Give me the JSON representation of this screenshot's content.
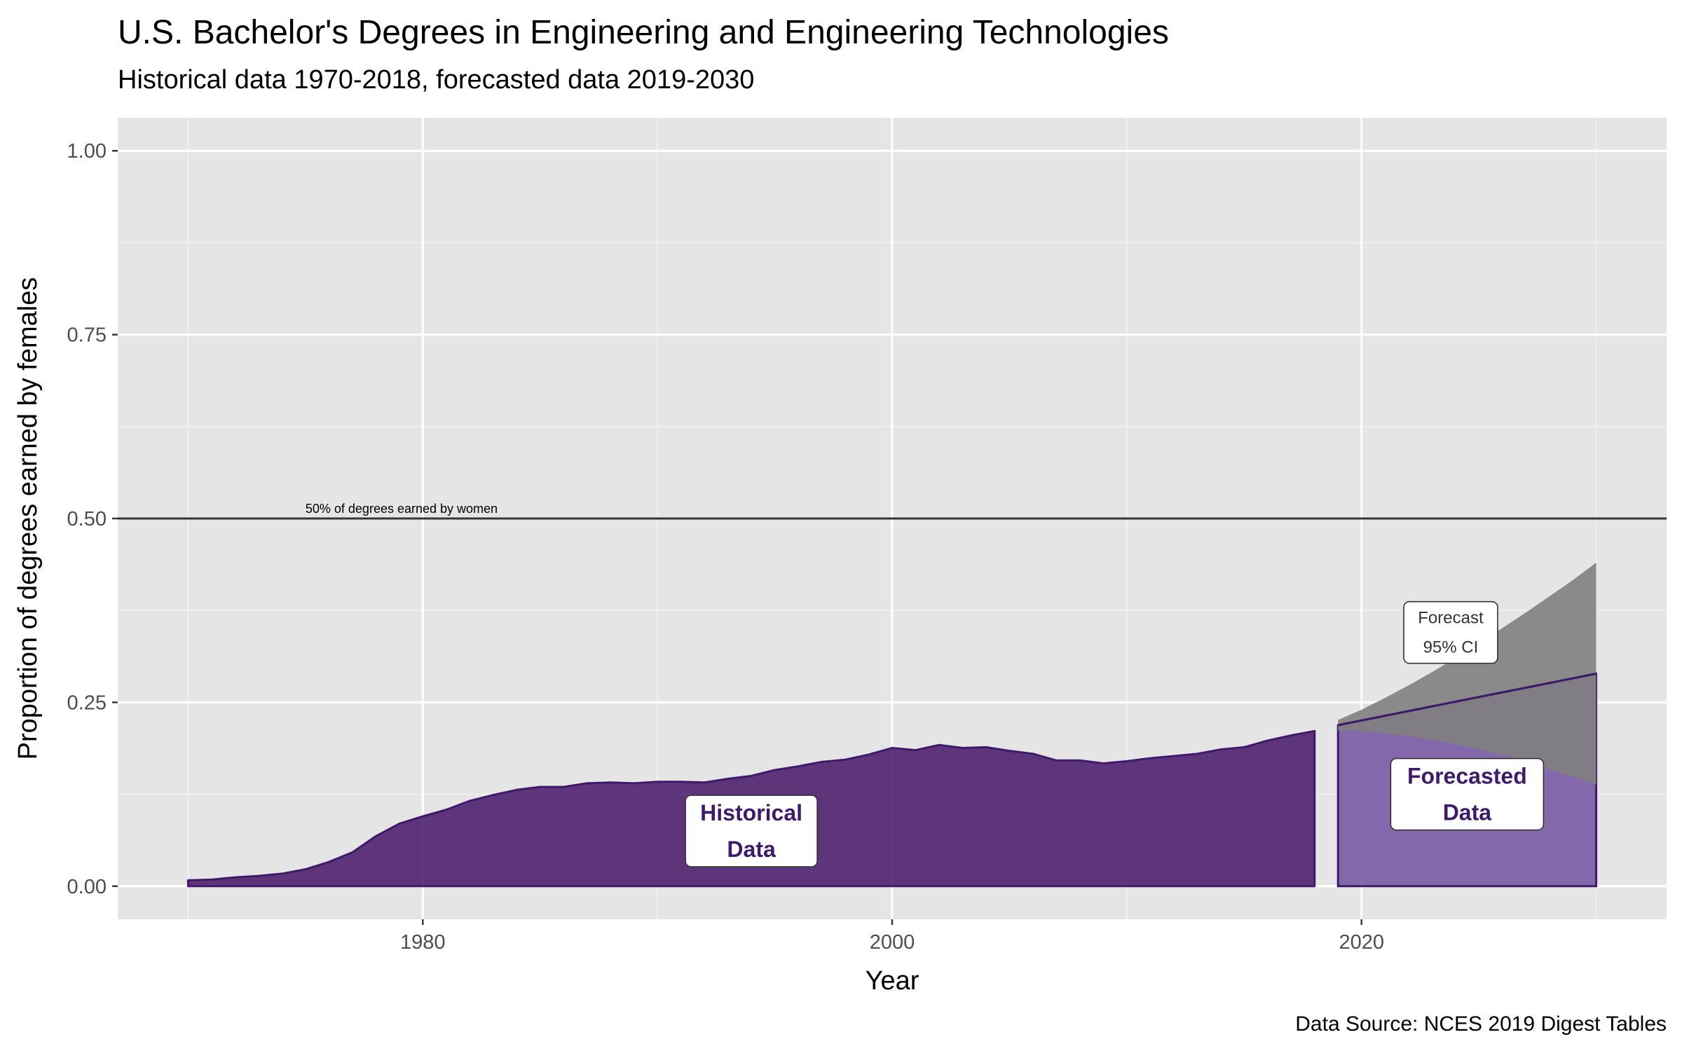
{
  "chart_data": {
    "type": "area",
    "title": "U.S. Bachelor's Degrees in Engineering and Engineering Technologies",
    "subtitle": "Historical data 1970-2018, forecasted data 2019-2030",
    "xlabel": "Year",
    "ylabel": "Proportion of degrees earned by females",
    "caption": "Data Source: NCES 2019 Digest Tables",
    "xlim": [
      1967,
      2033
    ],
    "ylim": [
      -0.045,
      1.045
    ],
    "x_ticks": [
      1980,
      2000,
      2020
    ],
    "y_ticks": [
      0.0,
      0.25,
      0.5,
      0.75,
      1.0
    ],
    "y_tick_labels": [
      "0.00",
      "0.25",
      "0.50",
      "0.75",
      "1.00"
    ],
    "grid": true,
    "reference_line": {
      "y": 0.5,
      "label": "50% of degrees earned by women",
      "label_x": 1975
    },
    "series": [
      {
        "name": "Historical Data",
        "color": "#4b1d6b",
        "x": [
          1970,
          1971,
          1972,
          1973,
          1974,
          1975,
          1976,
          1977,
          1978,
          1979,
          1980,
          1981,
          1982,
          1983,
          1984,
          1985,
          1986,
          1987,
          1988,
          1989,
          1990,
          1991,
          1992,
          1993,
          1994,
          1995,
          1996,
          1997,
          1998,
          1999,
          2000,
          2001,
          2002,
          2003,
          2004,
          2005,
          2006,
          2007,
          2008,
          2009,
          2010,
          2011,
          2012,
          2013,
          2014,
          2015,
          2016,
          2017,
          2018
        ],
        "y": [
          0.008,
          0.009,
          0.012,
          0.014,
          0.017,
          0.023,
          0.033,
          0.046,
          0.068,
          0.085,
          0.095,
          0.104,
          0.116,
          0.124,
          0.131,
          0.135,
          0.135,
          0.14,
          0.141,
          0.14,
          0.142,
          0.142,
          0.141,
          0.146,
          0.15,
          0.158,
          0.163,
          0.169,
          0.172,
          0.179,
          0.188,
          0.185,
          0.192,
          0.188,
          0.189,
          0.184,
          0.18,
          0.171,
          0.171,
          0.167,
          0.17,
          0.174,
          0.177,
          0.18,
          0.186,
          0.189,
          0.198,
          0.205,
          0.211
        ]
      },
      {
        "name": "Forecasted Data",
        "color": "#7b5ea7",
        "x": [
          2019,
          2030
        ],
        "y": [
          0.219,
          0.289
        ]
      }
    ],
    "confidence_band": {
      "label_line1": "Forecast",
      "label_line2": "95% CI",
      "color": "#808080",
      "x": [
        2019,
        2020,
        2021,
        2022,
        2023,
        2024,
        2025,
        2026,
        2027,
        2028,
        2029,
        2030
      ],
      "upper": [
        0.226,
        0.24,
        0.256,
        0.273,
        0.291,
        0.31,
        0.33,
        0.351,
        0.372,
        0.394,
        0.416,
        0.44
      ],
      "lower": [
        0.212,
        0.211,
        0.208,
        0.204,
        0.199,
        0.193,
        0.186,
        0.178,
        0.169,
        0.159,
        0.149,
        0.138
      ]
    },
    "annotations": [
      {
        "label_line1": "Historical",
        "label_line2": "Data",
        "x": 1994.0,
        "y": 0.075
      },
      {
        "label_line1": "Forecasted",
        "label_line2": "Data",
        "x": 2024.5,
        "y": 0.125
      }
    ]
  }
}
